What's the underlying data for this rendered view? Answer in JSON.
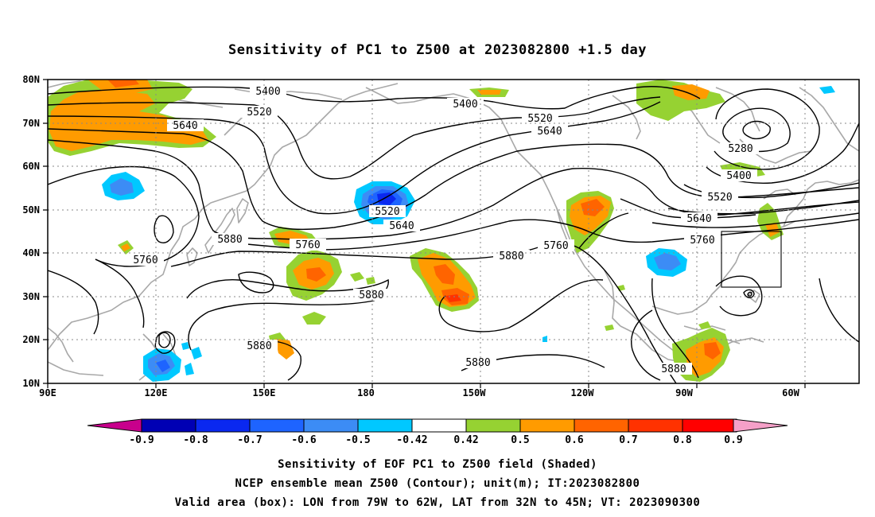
{
  "title": "Sensitivity of PC1 to Z500 at 2023082800 +1.5 day",
  "lon_labels": [
    "90E",
    "120E",
    "150E",
    "180",
    "150W",
    "120W",
    "90W",
    "60W"
  ],
  "lat_labels": [
    "10N",
    "20N",
    "30N",
    "40N",
    "50N",
    "60N",
    "70N",
    "80N"
  ],
  "contour_labels": [
    "5400",
    "5520",
    "5640",
    "5400",
    "5520",
    "5640",
    "5280",
    "5400",
    "5520",
    "5640",
    "5760",
    "5520",
    "5640",
    "5760",
    "5880",
    "5760",
    "5880",
    "5760",
    "5880",
    "5880",
    "5880",
    "5880",
    "5880"
  ],
  "colorbar": {
    "labels": [
      "-0.9",
      "-0.8",
      "-0.7",
      "-0.6",
      "-0.5",
      "-0.42",
      "0.42",
      "0.5",
      "0.6",
      "0.7",
      "0.8",
      "0.9"
    ],
    "colors": [
      "#0000b4",
      "#0a28f0",
      "#1e64ff",
      "#3c8cf5",
      "#00c8ff",
      "#ffffff",
      "#96d232",
      "#ff9b00",
      "#ff6400",
      "#ff3200",
      "#ff0000"
    ],
    "low_arrow_color": "#c8008c",
    "high_arrow_color": "#f5a0c8"
  },
  "caption": [
    "Sensitivity of EOF PC1 to Z500 field (Shaded)",
    "NCEP ensemble mean Z500 (Contour); unit(m); IT:2023082800",
    "Valid area (box): LON from 79W to 62W, LAT from 32N to 45N; VT: 2023090300"
  ],
  "valid_box": {
    "lon": [
      -79,
      -62
    ],
    "lat": [
      32,
      45
    ]
  }
}
